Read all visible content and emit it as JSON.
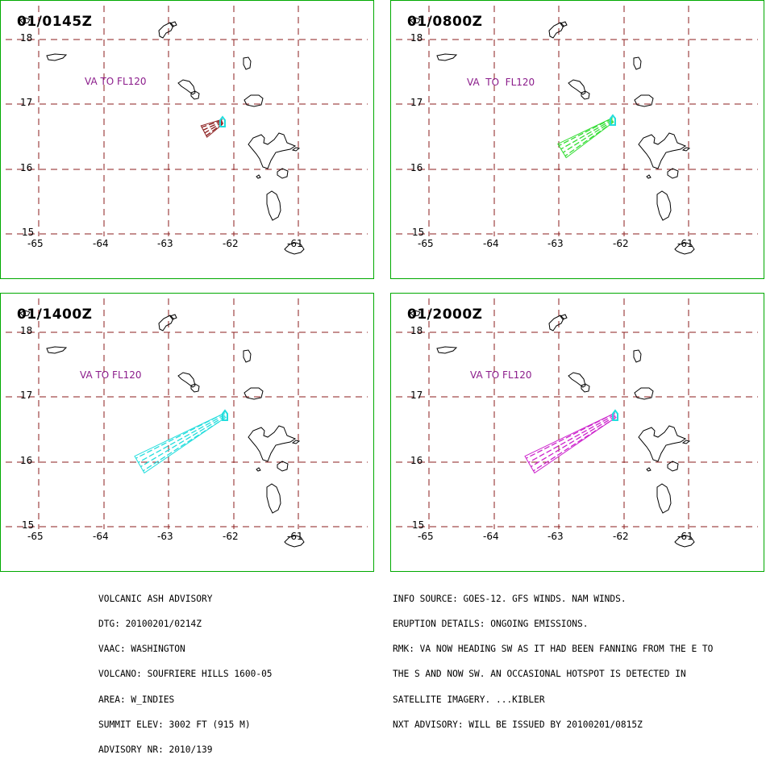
{
  "panels": [
    {
      "time": "01/0145Z",
      "va_label": "VA TO FL120",
      "plume_color": "#8b1c1c",
      "plume_extent": "small"
    },
    {
      "time": "01/0800Z",
      "va_label": "VA  TO  FL120",
      "plume_color": "#33dd33",
      "plume_extent": "medium"
    },
    {
      "time": "01/1400Z",
      "va_label": "VA TO FL120",
      "plume_color": "#22dddd",
      "plume_extent": "large"
    },
    {
      "time": "01/2000Z",
      "va_label": "VA TO FL120",
      "plume_color": "#cc22cc",
      "plume_extent": "large"
    }
  ],
  "grid": {
    "lat_labels": [
      "18",
      "17",
      "16",
      "15"
    ],
    "lon_labels": [
      "-65",
      "-64",
      "-63",
      "-62",
      "-61"
    ],
    "grid_color": "#8b1c1c",
    "volcano_color": "#22dddd"
  },
  "advisory_left": [
    "VOLCANIC ASH ADVISORY",
    "DTG: 20100201/0214Z",
    "VAAC: WASHINGTON",
    "VOLCANO: SOUFRIERE HILLS 1600-05",
    "AREA: W_INDIES",
    "SUMMIT ELEV: 3002 FT (915 M)",
    "ADVISORY NR: 2010/139"
  ],
  "advisory_right": [
    "INFO SOURCE: GOES-12. GFS WINDS. NAM WINDS.",
    "ERUPTION DETAILS: ONGOING EMISSIONS.",
    "RMK: VA NOW HEADING SW AS IT HAD BEEN FANNING FROM THE E TO",
    "THE S AND NOW SW. AN OCCASIONAL HOTSPOT IS DETECTED IN",
    "SATELLITE IMAGERY. ...KIBLER",
    "NXT ADVISORY: WILL BE ISSUED BY 20100201/0815Z"
  ]
}
